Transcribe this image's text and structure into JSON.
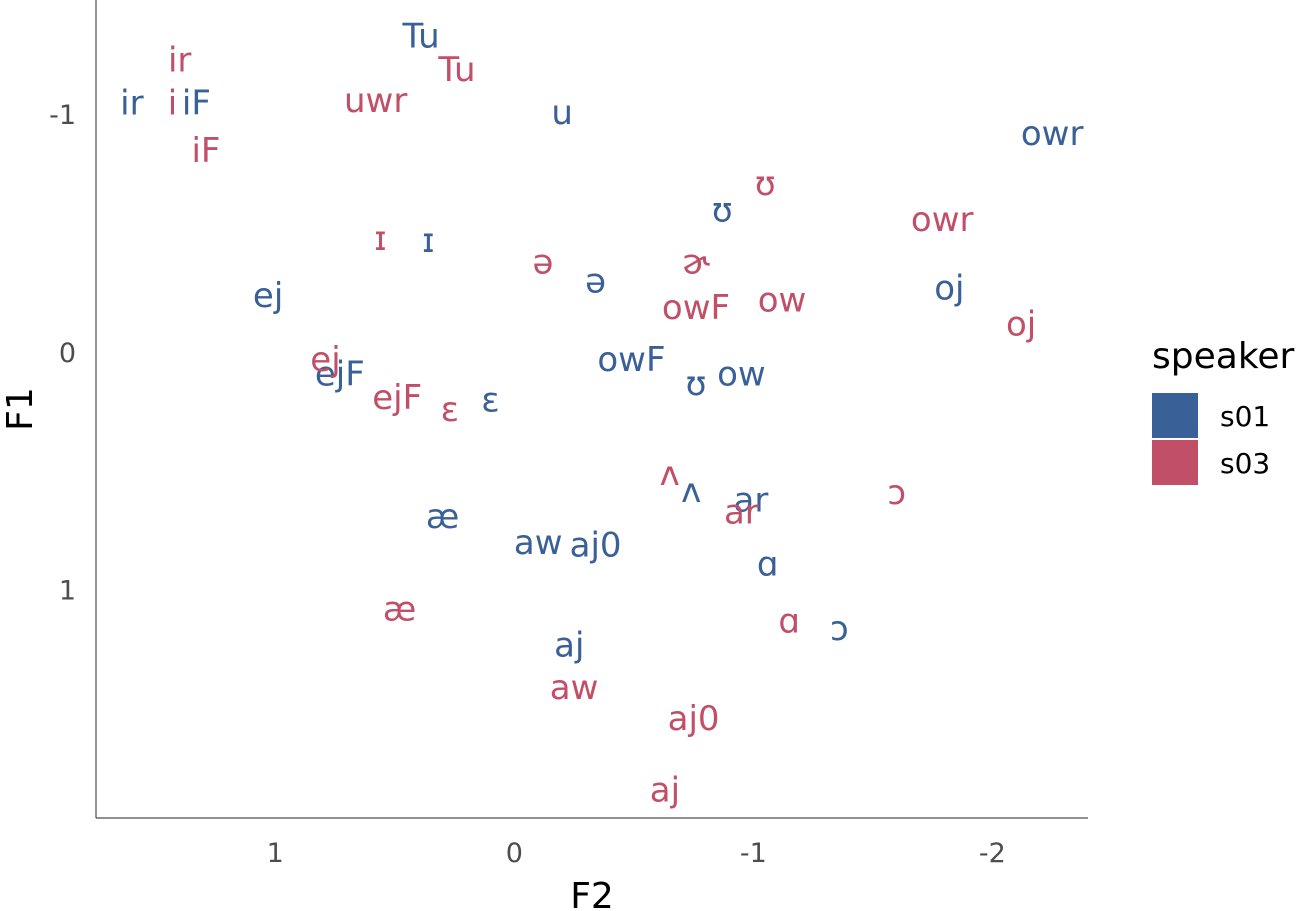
{
  "chart_data": {
    "type": "scatter",
    "xlabel": "F2",
    "ylabel": "F1",
    "x_reversed": true,
    "y_reversed": true,
    "xlim": [
      1.75,
      -2.4
    ],
    "ylim": [
      -1.48,
      1.96
    ],
    "x_ticks": [
      1,
      0,
      -1,
      -2
    ],
    "x_tick_labels": [
      "1",
      "0",
      "-1",
      "-2"
    ],
    "y_ticks": [
      -1,
      0,
      1
    ],
    "y_tick_labels": [
      "-1",
      "0",
      "1"
    ],
    "grid": false,
    "legend": {
      "title": "speaker",
      "position": "right",
      "entries": [
        {
          "name": "s01",
          "color": "#3a6098"
        },
        {
          "name": "s03",
          "color": "#c24f68"
        }
      ]
    },
    "series": [
      {
        "name": "s01",
        "color": "#3a6098",
        "points": [
          {
            "label": "Tu",
            "x": 0.39,
            "y": -1.33
          },
          {
            "label": "ir",
            "x": 1.6,
            "y": -1.05
          },
          {
            "label": "iF",
            "x": 1.33,
            "y": -1.05
          },
          {
            "label": "u",
            "x": -0.2,
            "y": -1.01
          },
          {
            "label": "owr",
            "x": -2.25,
            "y": -0.92
          },
          {
            "label": "ʊ",
            "x": -0.87,
            "y": -0.6
          },
          {
            "label": "ɪ",
            "x": 0.36,
            "y": -0.47
          },
          {
            "label": "ə",
            "x": -0.34,
            "y": -0.3
          },
          {
            "label": "ej",
            "x": 1.03,
            "y": -0.24
          },
          {
            "label": "oj",
            "x": -1.82,
            "y": -0.27
          },
          {
            "label": "ejF",
            "x": 0.73,
            "y": 0.09
          },
          {
            "label": "ʊ",
            "x": -0.76,
            "y": 0.13
          },
          {
            "label": "ow",
            "x": -0.95,
            "y": 0.09
          },
          {
            "label": "owF",
            "x": -0.49,
            "y": 0.03
          },
          {
            "label": "ɛ",
            "x": 0.1,
            "y": 0.2
          },
          {
            "label": "ʌ",
            "x": -0.74,
            "y": 0.58
          },
          {
            "label": "ar",
            "x": -0.99,
            "y": 0.62
          },
          {
            "label": "æ",
            "x": 0.3,
            "y": 0.69
          },
          {
            "label": "aw",
            "x": -0.1,
            "y": 0.8
          },
          {
            "label": "aj0",
            "x": -0.34,
            "y": 0.81
          },
          {
            "label": "ɑ",
            "x": -1.06,
            "y": 0.89
          },
          {
            "label": "ɔ",
            "x": -1.36,
            "y": 1.16
          },
          {
            "label": "aj",
            "x": -0.23,
            "y": 1.23
          }
        ]
      },
      {
        "name": "s03",
        "color": "#c24f68",
        "points": [
          {
            "label": "ir",
            "x": 1.4,
            "y": -1.23
          },
          {
            "label": "Tu",
            "x": 0.24,
            "y": -1.19
          },
          {
            "label": "i",
            "x": 1.43,
            "y": -1.05
          },
          {
            "label": "uwr",
            "x": 0.58,
            "y": -1.06
          },
          {
            "label": "iF",
            "x": 1.29,
            "y": -0.85
          },
          {
            "label": "ʊ",
            "x": -1.05,
            "y": -0.71
          },
          {
            "label": "owr",
            "x": -1.79,
            "y": -0.56
          },
          {
            "label": "ɪ",
            "x": 0.56,
            "y": -0.48
          },
          {
            "label": "ə",
            "x": -0.12,
            "y": -0.38
          },
          {
            "label": "ɚ",
            "x": -0.76,
            "y": -0.38
          },
          {
            "label": "ow",
            "x": -1.12,
            "y": -0.22
          },
          {
            "label": "owF",
            "x": -0.76,
            "y": -0.19
          },
          {
            "label": "oj",
            "x": -2.12,
            "y": -0.12
          },
          {
            "label": "ej",
            "x": 0.79,
            "y": 0.03
          },
          {
            "label": "ejF",
            "x": 0.49,
            "y": 0.19
          },
          {
            "label": "ɛ",
            "x": 0.27,
            "y": 0.24
          },
          {
            "label": "ʌ",
            "x": -0.65,
            "y": 0.51
          },
          {
            "label": "ɔ",
            "x": -1.6,
            "y": 0.59
          },
          {
            "label": "ar",
            "x": -0.95,
            "y": 0.67
          },
          {
            "label": "æ",
            "x": 0.48,
            "y": 1.08
          },
          {
            "label": "ɑ",
            "x": -1.15,
            "y": 1.13
          },
          {
            "label": "aw",
            "x": -0.25,
            "y": 1.41
          },
          {
            "label": "aj0",
            "x": -0.75,
            "y": 1.54
          },
          {
            "label": "aj",
            "x": -0.63,
            "y": 1.84
          }
        ]
      }
    ]
  }
}
